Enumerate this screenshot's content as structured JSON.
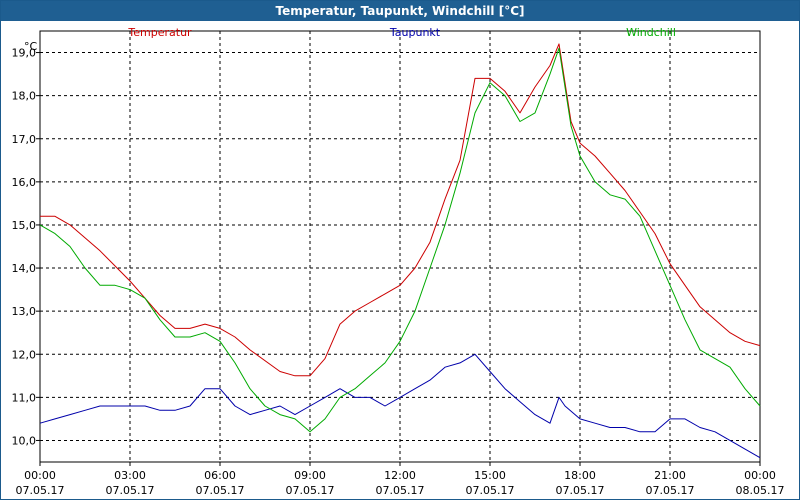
{
  "window": {
    "title": "Temperatur, Taupunkt, Windchill [°C]"
  },
  "chart_data": {
    "type": "line",
    "title": "Temperatur, Taupunkt, Windchill [°C]",
    "ylabel": "°C",
    "ylim": [
      9.5,
      19.5
    ],
    "xlim": [
      0,
      24
    ],
    "grid": true,
    "y_ticks": [
      "10,0",
      "11,0",
      "12,0",
      "13,0",
      "14,0",
      "15,0",
      "16,0",
      "17,0",
      "18,0",
      "19,0"
    ],
    "x_ticks": [
      {
        "time": "00:00",
        "date": "07.05.17"
      },
      {
        "time": "03:00",
        "date": "07.05.17"
      },
      {
        "time": "06:00",
        "date": "07.05.17"
      },
      {
        "time": "09:00",
        "date": "07.05.17"
      },
      {
        "time": "12:00",
        "date": "07.05.17"
      },
      {
        "time": "15:00",
        "date": "07.05.17"
      },
      {
        "time": "18:00",
        "date": "07.05.17"
      },
      {
        "time": "21:00",
        "date": "07.05.17"
      },
      {
        "time": "00:00",
        "date": "08.05.17"
      }
    ],
    "series": [
      {
        "name": "Temperatur",
        "color": "#cc0000",
        "x": [
          0,
          0.5,
          1,
          2,
          3,
          3.5,
          4,
          4.5,
          5,
          5.5,
          6,
          6.5,
          7,
          8,
          8.5,
          9,
          9.5,
          10,
          10.5,
          11,
          11.5,
          12,
          12.5,
          13,
          13.5,
          14,
          14.5,
          15,
          15.5,
          16,
          16.5,
          17,
          17.3,
          17.7,
          18,
          18.5,
          19,
          19.5,
          20,
          20.5,
          21,
          21.5,
          22,
          23,
          23.5,
          24
        ],
        "values": [
          15.2,
          15.2,
          15.0,
          14.4,
          13.7,
          13.3,
          12.9,
          12.6,
          12.6,
          12.7,
          12.6,
          12.4,
          12.1,
          11.6,
          11.5,
          11.5,
          11.9,
          12.7,
          13.0,
          13.2,
          13.4,
          13.6,
          14.0,
          14.6,
          15.6,
          16.5,
          18.4,
          18.4,
          18.1,
          17.6,
          18.2,
          18.7,
          19.2,
          17.4,
          16.9,
          16.6,
          16.2,
          15.8,
          15.3,
          14.8,
          14.1,
          13.6,
          13.1,
          12.5,
          12.3,
          12.2
        ]
      },
      {
        "name": "Taupunkt",
        "color": "#0000aa",
        "x": [
          0,
          0.5,
          1,
          1.5,
          2,
          2.5,
          3,
          3.5,
          4,
          4.5,
          5,
          5.5,
          6,
          6.5,
          7,
          7.5,
          8,
          8.5,
          9,
          9.5,
          10,
          10.5,
          11,
          11.5,
          12,
          12.5,
          13,
          13.5,
          14,
          14.5,
          15,
          15.5,
          16,
          16.5,
          17,
          17.3,
          17.5,
          18,
          18.5,
          19,
          19.5,
          20,
          20.5,
          21,
          21.5,
          22,
          22.5,
          23,
          23.5,
          24
        ],
        "values": [
          10.4,
          10.5,
          10.6,
          10.7,
          10.8,
          10.8,
          10.8,
          10.8,
          10.7,
          10.7,
          10.8,
          11.2,
          11.2,
          10.8,
          10.6,
          10.7,
          10.8,
          10.6,
          10.8,
          11.0,
          11.2,
          11.0,
          11.0,
          10.8,
          11.0,
          11.2,
          11.4,
          11.7,
          11.8,
          12.0,
          11.6,
          11.2,
          10.9,
          10.6,
          10.4,
          11.0,
          10.8,
          10.5,
          10.4,
          10.3,
          10.3,
          10.2,
          10.2,
          10.5,
          10.5,
          10.3,
          10.2,
          10.0,
          9.8,
          9.6
        ]
      },
      {
        "name": "Windchill",
        "color": "#00aa00",
        "x": [
          0,
          0.5,
          1,
          1.5,
          2,
          2.5,
          3,
          3.5,
          4,
          4.5,
          5,
          5.5,
          6,
          6.5,
          7,
          7.5,
          8,
          8.5,
          9,
          9.5,
          10,
          10.5,
          11,
          11.5,
          12,
          12.5,
          13,
          13.5,
          14,
          14.5,
          15,
          15.5,
          16,
          16.5,
          17,
          17.3,
          17.7,
          18,
          18.5,
          19,
          19.5,
          20,
          20.5,
          21,
          21.5,
          22,
          22.5,
          23,
          23.5,
          24
        ],
        "values": [
          15.0,
          14.8,
          14.5,
          14.0,
          13.6,
          13.6,
          13.5,
          13.3,
          12.8,
          12.4,
          12.4,
          12.5,
          12.3,
          11.8,
          11.2,
          10.8,
          10.6,
          10.5,
          10.2,
          10.5,
          11.0,
          11.2,
          11.5,
          11.8,
          12.3,
          13.0,
          14.0,
          15.0,
          16.2,
          17.6,
          18.3,
          18.0,
          17.4,
          17.6,
          18.5,
          19.1,
          17.3,
          16.6,
          16.0,
          15.7,
          15.6,
          15.2,
          14.4,
          13.6,
          12.8,
          12.1,
          11.9,
          11.7,
          11.2,
          10.8
        ]
      }
    ]
  }
}
